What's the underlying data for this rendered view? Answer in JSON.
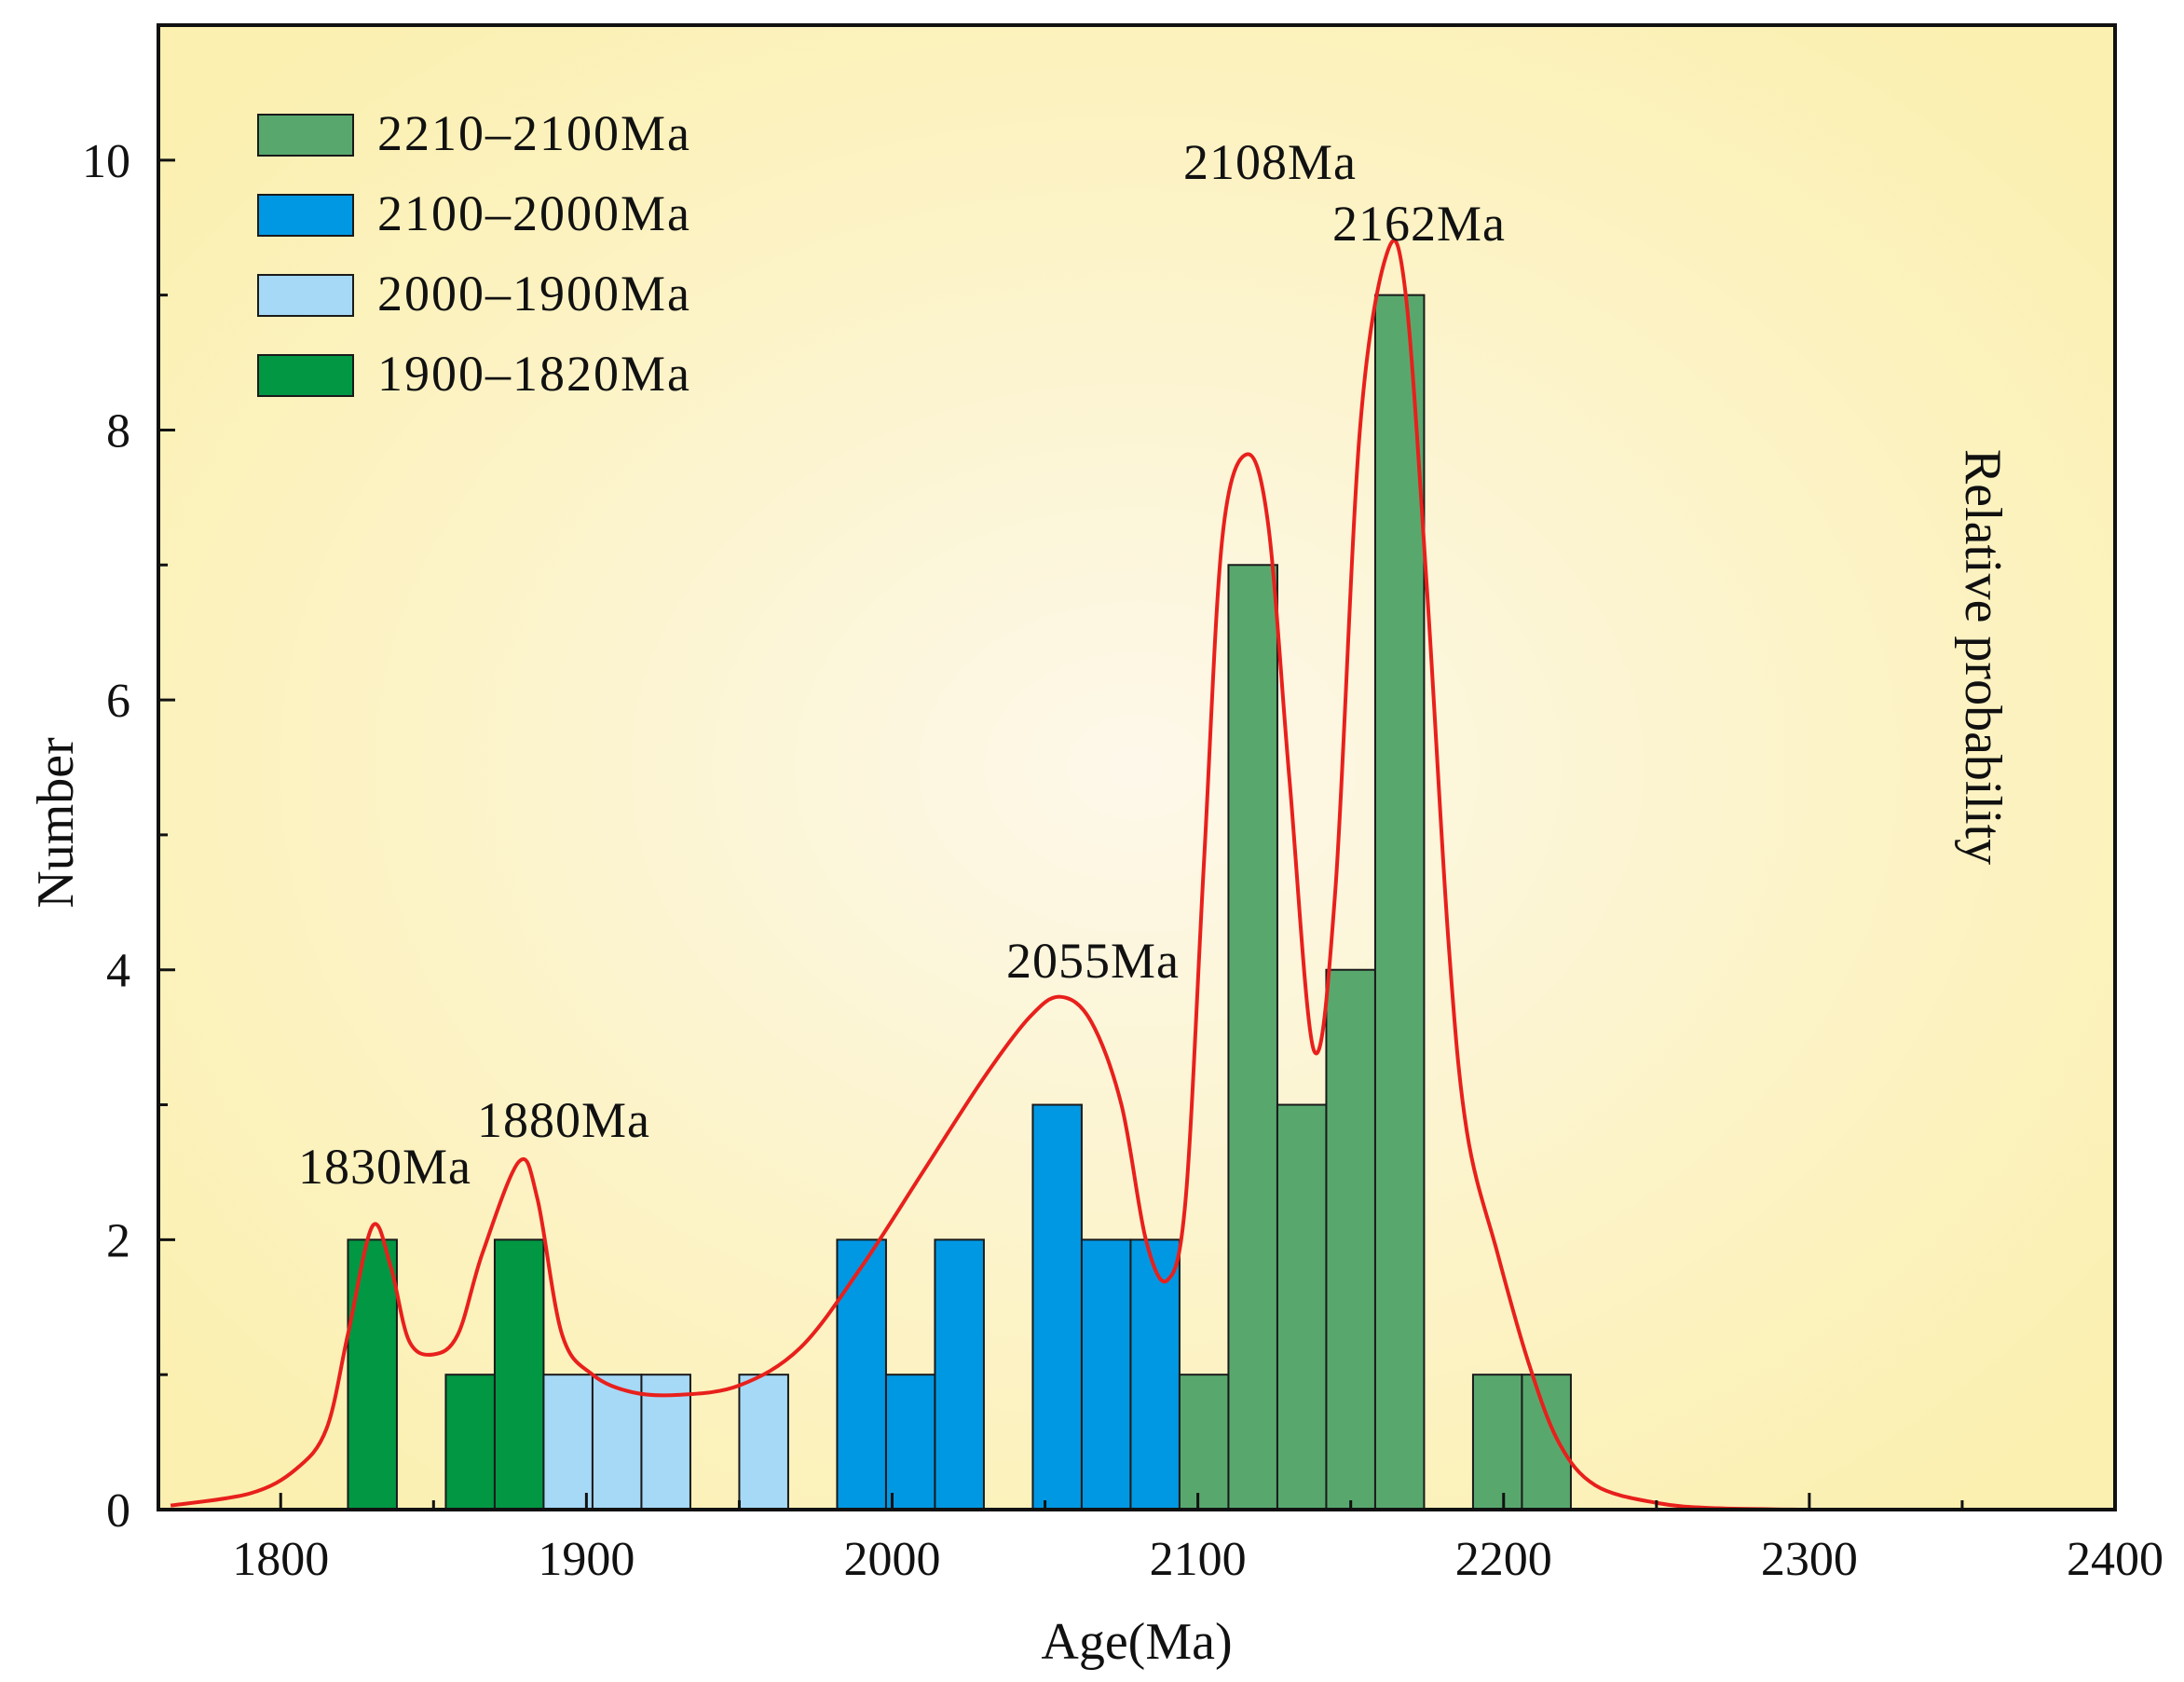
{
  "chart_data": {
    "type": "bar",
    "xlabel": "Age(Ma)",
    "ylabel": "Number",
    "y2label": "Relative probability",
    "xlim": [
      1760,
      2400
    ],
    "ylim": [
      0,
      11
    ],
    "x_ticks": [
      1800,
      1900,
      2000,
      2100,
      2200,
      2300,
      2400
    ],
    "y_ticks": [
      0,
      2,
      4,
      6,
      8,
      10
    ],
    "legend_position": "top-left",
    "legend": [
      {
        "id": "g1",
        "label": "2210–2100Ma",
        "color": "#58a86e"
      },
      {
        "id": "g2",
        "label": "2100–2000Ma",
        "color": "#0098e3"
      },
      {
        "id": "g3",
        "label": "2000–1900Ma",
        "color": "#a6d9f6"
      },
      {
        "id": "g4",
        "label": "1900–1820Ma",
        "color": "#019743"
      }
    ],
    "bin_width": 16,
    "bars": [
      {
        "start": 1822,
        "value": 2,
        "group": "g4"
      },
      {
        "start": 1854,
        "value": 1,
        "group": "g4"
      },
      {
        "start": 1870,
        "value": 2,
        "group": "g4"
      },
      {
        "start": 1886,
        "value": 1,
        "group": "g3"
      },
      {
        "start": 1902,
        "value": 1,
        "group": "g3"
      },
      {
        "start": 1918,
        "value": 1,
        "group": "g3"
      },
      {
        "start": 1950,
        "value": 1,
        "group": "g3"
      },
      {
        "start": 1982,
        "value": 2,
        "group": "g2"
      },
      {
        "start": 1998,
        "value": 1,
        "group": "g2"
      },
      {
        "start": 2014,
        "value": 2,
        "group": "g2"
      },
      {
        "start": 2046,
        "value": 3,
        "group": "g2"
      },
      {
        "start": 2062,
        "value": 2,
        "group": "g2"
      },
      {
        "start": 2078,
        "value": 2,
        "group": "g2"
      },
      {
        "start": 2094,
        "value": 1,
        "group": "g1"
      },
      {
        "start": 2110,
        "value": 7,
        "group": "g1"
      },
      {
        "start": 2126,
        "value": 3,
        "group": "g1"
      },
      {
        "start": 2142,
        "value": 4,
        "group": "g1"
      },
      {
        "start": 2158,
        "value": 9,
        "group": "g1"
      },
      {
        "start": 2190,
        "value": 1,
        "group": "g1"
      },
      {
        "start": 2206,
        "value": 1,
        "group": "g1"
      }
    ],
    "probability_curve": {
      "color": "#e8201c",
      "points": [
        [
          1764,
          0.03
        ],
        [
          1790,
          0.12
        ],
        [
          1805,
          0.3
        ],
        [
          1815,
          0.6
        ],
        [
          1822,
          1.3
        ],
        [
          1830,
          2.1
        ],
        [
          1836,
          1.8
        ],
        [
          1842,
          1.25
        ],
        [
          1850,
          1.15
        ],
        [
          1858,
          1.3
        ],
        [
          1866,
          1.9
        ],
        [
          1878,
          2.58
        ],
        [
          1884,
          2.3
        ],
        [
          1892,
          1.3
        ],
        [
          1902,
          1.0
        ],
        [
          1915,
          0.87
        ],
        [
          1930,
          0.85
        ],
        [
          1950,
          0.92
        ],
        [
          1970,
          1.2
        ],
        [
          1990,
          1.8
        ],
        [
          2010,
          2.5
        ],
        [
          2030,
          3.2
        ],
        [
          2045,
          3.65
        ],
        [
          2055,
          3.8
        ],
        [
          2065,
          3.62
        ],
        [
          2075,
          3.0
        ],
        [
          2083,
          2.0
        ],
        [
          2090,
          1.7
        ],
        [
          2096,
          2.3
        ],
        [
          2102,
          4.8
        ],
        [
          2108,
          7.2
        ],
        [
          2116,
          7.82
        ],
        [
          2123,
          7.3
        ],
        [
          2130,
          5.4
        ],
        [
          2138,
          3.4
        ],
        [
          2145,
          4.6
        ],
        [
          2153,
          8.0
        ],
        [
          2162,
          9.32
        ],
        [
          2168,
          9.0
        ],
        [
          2175,
          6.8
        ],
        [
          2182,
          4.2
        ],
        [
          2188,
          2.8
        ],
        [
          2198,
          1.9
        ],
        [
          2208,
          1.1
        ],
        [
          2218,
          0.5
        ],
        [
          2230,
          0.18
        ],
        [
          2250,
          0.05
        ],
        [
          2270,
          0.01
        ],
        [
          2300,
          0.0
        ]
      ]
    },
    "peaks": [
      {
        "label": "1830Ma",
        "x": 1830
      },
      {
        "label": "1880Ma",
        "x": 1880
      },
      {
        "label": "2055Ma",
        "x": 2055
      },
      {
        "label": "2108Ma",
        "x": 2108
      },
      {
        "label": "2162Ma",
        "x": 2162
      }
    ]
  }
}
